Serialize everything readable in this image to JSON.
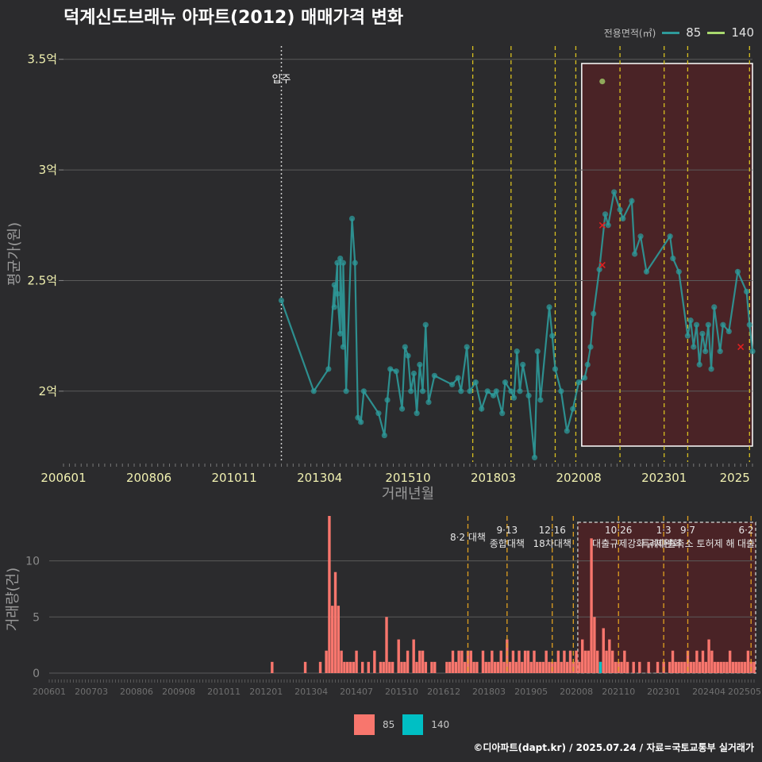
{
  "title": "덕계신도브래뉴 아파트(2012) 매매가격 변화",
  "legend": {
    "title": "전용면적(㎡)",
    "items": [
      {
        "label": "85",
        "line_color": "#2e9a9a",
        "bar_color": "#f8766d"
      },
      {
        "label": "140",
        "line_color": "#a8d86e",
        "bar_color": "#00bfc4"
      }
    ]
  },
  "footer": "©디아파트(dapt.kr) / 2025.07.24 / 자료=국토교통부 실거래가",
  "chart_data": [
    {
      "type": "line",
      "ylabel": "평균가(원)",
      "xlabel": "거래년월",
      "x_ticks": [
        "200601",
        "200806",
        "201011",
        "201304",
        "201510",
        "201803",
        "202008",
        "202301",
        "2025"
      ],
      "y_ticks": [
        "2억",
        "2.5억",
        "3억",
        "3.5억"
      ],
      "y_tick_values": [
        2.0,
        2.5,
        3.0,
        3.5
      ],
      "ylim": [
        1.68,
        3.56
      ],
      "x_range": [
        "2006-01",
        "2025-07"
      ],
      "grid": true,
      "annotation_move_in": {
        "label": "입주",
        "date": "2012-03"
      },
      "policy_dates": [
        "2017-08",
        "2018-09",
        "2019-12",
        "2020-07",
        "2021-10",
        "2023-01",
        "2023-09",
        "2025-06"
      ],
      "highlight_range": [
        "2020-09",
        "2025-07"
      ],
      "cancelled_points": [
        {
          "date": "2021-04",
          "value": 2.75
        },
        {
          "date": "2021-04",
          "value": 2.57
        },
        {
          "date": "2025-03",
          "value": 2.2
        }
      ],
      "series": [
        {
          "name": "85",
          "color": "#2e9a9a",
          "points": [
            [
              "2012-03",
              2.41
            ],
            [
              "2013-02",
              2.0
            ],
            [
              "2013-07",
              2.1
            ],
            [
              "2013-09",
              2.48
            ],
            [
              "2013-09",
              2.38
            ],
            [
              "2013-10",
              2.58
            ],
            [
              "2013-10",
              2.44
            ],
            [
              "2013-11",
              2.26
            ],
            [
              "2013-11",
              2.6
            ],
            [
              "2013-12",
              2.2
            ],
            [
              "2013-12",
              2.58
            ],
            [
              "2014-01",
              2.0
            ],
            [
              "2014-03",
              2.78
            ],
            [
              "2014-04",
              2.58
            ],
            [
              "2014-05",
              1.88
            ],
            [
              "2014-06",
              1.86
            ],
            [
              "2014-07",
              2.0
            ],
            [
              "2014-12",
              1.9
            ],
            [
              "2015-02",
              1.8
            ],
            [
              "2015-03",
              1.96
            ],
            [
              "2015-04",
              2.1
            ],
            [
              "2015-06",
              2.09
            ],
            [
              "2015-08",
              1.92
            ],
            [
              "2015-09",
              2.2
            ],
            [
              "2015-10",
              2.16
            ],
            [
              "2015-11",
              2.0
            ],
            [
              "2015-12",
              2.08
            ],
            [
              "2016-01",
              1.9
            ],
            [
              "2016-02",
              2.12
            ],
            [
              "2016-03",
              2.0
            ],
            [
              "2016-04",
              2.3
            ],
            [
              "2016-05",
              1.95
            ],
            [
              "2016-07",
              2.07
            ],
            [
              "2017-01",
              2.03
            ],
            [
              "2017-03",
              2.06
            ],
            [
              "2017-04",
              2.0
            ],
            [
              "2017-06",
              2.2
            ],
            [
              "2017-07",
              2.0
            ],
            [
              "2017-09",
              2.04
            ],
            [
              "2017-11",
              1.92
            ],
            [
              "2018-01",
              2.0
            ],
            [
              "2018-03",
              1.98
            ],
            [
              "2018-04",
              2.0
            ],
            [
              "2018-06",
              1.9
            ],
            [
              "2018-07",
              2.04
            ],
            [
              "2018-09",
              2.0
            ],
            [
              "2018-10",
              1.97
            ],
            [
              "2018-11",
              2.18
            ],
            [
              "2018-12",
              2.0
            ],
            [
              "2019-01",
              2.12
            ],
            [
              "2019-03",
              1.98
            ],
            [
              "2019-05",
              1.7
            ],
            [
              "2019-06",
              2.18
            ],
            [
              "2019-07",
              1.96
            ],
            [
              "2019-10",
              2.38
            ],
            [
              "2019-11",
              2.25
            ],
            [
              "2019-12",
              2.1
            ],
            [
              "2020-02",
              2.0
            ],
            [
              "2020-04",
              1.82
            ],
            [
              "2020-06",
              1.92
            ],
            [
              "2020-08",
              2.04
            ],
            [
              "2020-10",
              2.06
            ],
            [
              "2020-11",
              2.12
            ],
            [
              "2020-12",
              2.2
            ],
            [
              "2021-01",
              2.35
            ],
            [
              "2021-03",
              2.55
            ],
            [
              "2021-05",
              2.8
            ],
            [
              "2021-06",
              2.75
            ],
            [
              "2021-08",
              2.9
            ],
            [
              "2021-10",
              2.82
            ],
            [
              "2021-11",
              2.78
            ],
            [
              "2022-02",
              2.86
            ],
            [
              "2022-03",
              2.62
            ],
            [
              "2022-05",
              2.7
            ],
            [
              "2022-07",
              2.54
            ],
            [
              "2023-03",
              2.7
            ],
            [
              "2023-04",
              2.6
            ],
            [
              "2023-06",
              2.54
            ],
            [
              "2023-09",
              2.25
            ],
            [
              "2023-10",
              2.32
            ],
            [
              "2023-11",
              2.2
            ],
            [
              "2023-12",
              2.3
            ],
            [
              "2024-01",
              2.12
            ],
            [
              "2024-02",
              2.26
            ],
            [
              "2024-03",
              2.18
            ],
            [
              "2024-04",
              2.3
            ],
            [
              "2024-05",
              2.1
            ],
            [
              "2024-06",
              2.38
            ],
            [
              "2024-08",
              2.18
            ],
            [
              "2024-09",
              2.3
            ],
            [
              "2024-11",
              2.27
            ],
            [
              "2025-02",
              2.54
            ],
            [
              "2025-05",
              2.45
            ],
            [
              "2025-06",
              2.3
            ],
            [
              "2025-07",
              2.18
            ]
          ]
        },
        {
          "name": "140",
          "color": "#a8d86e",
          "points": [
            [
              "2021-04",
              3.4
            ]
          ]
        }
      ]
    },
    {
      "type": "bar",
      "ylabel": "거래량(건)",
      "y_ticks": [
        "0",
        "5",
        "10"
      ],
      "y_tick_values": [
        0,
        5,
        10
      ],
      "ylim": [
        0,
        14
      ],
      "x_ticks": [
        "200601",
        "200703",
        "200806",
        "200908",
        "201011",
        "201201",
        "201304",
        "201407",
        "201510",
        "201612",
        "201803",
        "201905",
        "202008",
        "202110",
        "202301",
        "202404",
        "202505"
      ],
      "x_range": [
        "2006-01",
        "2025-07"
      ],
      "policy_lines": [
        {
          "date": "2017-08",
          "label": "8·2 대책"
        },
        {
          "date": "2018-09",
          "label": "9·13\n종합대책"
        },
        {
          "date": "2019-12",
          "label": "12·16\n18차대책"
        },
        {
          "date": "2020-07",
          "label": ""
        },
        {
          "date": "2021-10",
          "label": "10·26\n대출규제강화"
        },
        {
          "date": "2023-01",
          "label": "1·3\n규제완화"
        },
        {
          "date": "2023-09",
          "label": "9·7\n특례대출축소 토허제 해"
        },
        {
          "date": "2025-06",
          "label": "6·2\n대출"
        }
      ],
      "highlight_range": [
        "2020-09",
        "2025-07"
      ],
      "series": [
        {
          "name": "85",
          "color": "#f8766d",
          "bars": [
            [
              "2012-03",
              1
            ],
            [
              "2013-02",
              1
            ],
            [
              "2013-07",
              1
            ],
            [
              "2013-09",
              2
            ],
            [
              "2013-10",
              14
            ],
            [
              "2013-11",
              6
            ],
            [
              "2013-12",
              9
            ],
            [
              "2014-01",
              6
            ],
            [
              "2014-02",
              2
            ],
            [
              "2014-03",
              1
            ],
            [
              "2014-04",
              1
            ],
            [
              "2014-05",
              1
            ],
            [
              "2014-06",
              1
            ],
            [
              "2014-07",
              2
            ],
            [
              "2014-09",
              1
            ],
            [
              "2014-11",
              1
            ],
            [
              "2015-01",
              2
            ],
            [
              "2015-03",
              1
            ],
            [
              "2015-04",
              1
            ],
            [
              "2015-05",
              5
            ],
            [
              "2015-06",
              1
            ],
            [
              "2015-07",
              1
            ],
            [
              "2015-09",
              3
            ],
            [
              "2015-10",
              1
            ],
            [
              "2015-11",
              1
            ],
            [
              "2015-12",
              2
            ],
            [
              "2016-02",
              3
            ],
            [
              "2016-03",
              1
            ],
            [
              "2016-04",
              2
            ],
            [
              "2016-05",
              2
            ],
            [
              "2016-06",
              1
            ],
            [
              "2016-08",
              1
            ],
            [
              "2016-09",
              1
            ],
            [
              "2017-01",
              1
            ],
            [
              "2017-02",
              1
            ],
            [
              "2017-03",
              2
            ],
            [
              "2017-04",
              1
            ],
            [
              "2017-05",
              2
            ],
            [
              "2017-06",
              2
            ],
            [
              "2017-07",
              1
            ],
            [
              "2017-08",
              2
            ],
            [
              "2017-09",
              2
            ],
            [
              "2017-10",
              1
            ],
            [
              "2017-11",
              1
            ],
            [
              "2018-01",
              2
            ],
            [
              "2018-02",
              1
            ],
            [
              "2018-03",
              1
            ],
            [
              "2018-04",
              2
            ],
            [
              "2018-05",
              1
            ],
            [
              "2018-06",
              1
            ],
            [
              "2018-07",
              2
            ],
            [
              "2018-08",
              1
            ],
            [
              "2018-09",
              3
            ],
            [
              "2018-10",
              1
            ],
            [
              "2018-11",
              2
            ],
            [
              "2018-12",
              1
            ],
            [
              "2019-01",
              2
            ],
            [
              "2019-02",
              1
            ],
            [
              "2019-03",
              2
            ],
            [
              "2019-04",
              2
            ],
            [
              "2019-05",
              1
            ],
            [
              "2019-06",
              2
            ],
            [
              "2019-07",
              1
            ],
            [
              "2019-08",
              1
            ],
            [
              "2019-09",
              1
            ],
            [
              "2019-10",
              2
            ],
            [
              "2019-11",
              1
            ],
            [
              "2019-12",
              1
            ],
            [
              "2020-01",
              1
            ],
            [
              "2020-02",
              2
            ],
            [
              "2020-03",
              1
            ],
            [
              "2020-04",
              2
            ],
            [
              "2020-05",
              1
            ],
            [
              "2020-06",
              2
            ],
            [
              "2020-07",
              1
            ],
            [
              "2020-08",
              2
            ],
            [
              "2020-09",
              1
            ],
            [
              "2020-10",
              3
            ],
            [
              "2020-11",
              2
            ],
            [
              "2020-12",
              2
            ],
            [
              "2021-01",
              12
            ],
            [
              "2021-02",
              5
            ],
            [
              "2021-03",
              2
            ],
            [
              "2021-04",
              1
            ],
            [
              "2021-05",
              4
            ],
            [
              "2021-06",
              2
            ],
            [
              "2021-07",
              3
            ],
            [
              "2021-08",
              2
            ],
            [
              "2021-09",
              1
            ],
            [
              "2021-10",
              1
            ],
            [
              "2021-11",
              1
            ],
            [
              "2021-12",
              2
            ],
            [
              "2022-01",
              1
            ],
            [
              "2022-03",
              1
            ],
            [
              "2022-05",
              1
            ],
            [
              "2022-08",
              1
            ],
            [
              "2022-11",
              1
            ],
            [
              "2023-01",
              1
            ],
            [
              "2023-03",
              1
            ],
            [
              "2023-04",
              2
            ],
            [
              "2023-05",
              1
            ],
            [
              "2023-06",
              1
            ],
            [
              "2023-07",
              1
            ],
            [
              "2023-08",
              1
            ],
            [
              "2023-09",
              2
            ],
            [
              "2023-10",
              1
            ],
            [
              "2023-11",
              1
            ],
            [
              "2023-12",
              2
            ],
            [
              "2024-01",
              1
            ],
            [
              "2024-02",
              2
            ],
            [
              "2024-03",
              1
            ],
            [
              "2024-04",
              3
            ],
            [
              "2024-05",
              2
            ],
            [
              "2024-06",
              1
            ],
            [
              "2024-07",
              1
            ],
            [
              "2024-08",
              1
            ],
            [
              "2024-09",
              1
            ],
            [
              "2024-10",
              1
            ],
            [
              "2024-11",
              2
            ],
            [
              "2024-12",
              1
            ],
            [
              "2025-01",
              1
            ],
            [
              "2025-02",
              1
            ],
            [
              "2025-03",
              1
            ],
            [
              "2025-04",
              1
            ],
            [
              "2025-05",
              2
            ],
            [
              "2025-06",
              1
            ],
            [
              "2025-07",
              1
            ]
          ]
        },
        {
          "name": "140",
          "color": "#00bfc4",
          "bars": [
            [
              "2021-04",
              1
            ]
          ]
        }
      ]
    }
  ]
}
